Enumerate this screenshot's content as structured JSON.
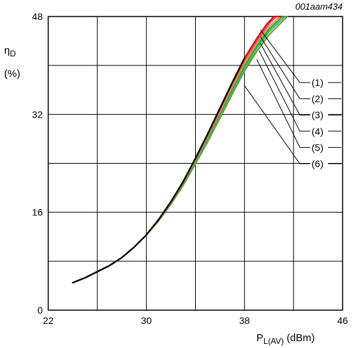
{
  "chart_data": {
    "type": "line",
    "figure_id": "001aam434",
    "xlabel_main": "P",
    "xlabel_sub": "L(AV)",
    "xlabel_unit": "(dBm)",
    "ylabel_line1_main": "η",
    "ylabel_line1_sub": "D",
    "ylabel_line2": "(%)",
    "xlim": [
      22,
      46
    ],
    "ylim": [
      0,
      48
    ],
    "xticks": [
      22,
      30,
      38,
      46
    ],
    "yticks": [
      0,
      16,
      32,
      48
    ],
    "x_gridlines": [
      22,
      26,
      30,
      34,
      38,
      42,
      46
    ],
    "y_gridlines": [
      0,
      8,
      16,
      24,
      32,
      40,
      48
    ],
    "grid": true,
    "series": [
      {
        "name": "(1)",
        "color": "#d01010",
        "x": [
          24.0,
          25.0,
          26.0,
          27.0,
          28.0,
          29.0,
          30.0,
          31.0,
          32.0,
          33.0,
          34.0,
          35.0,
          36.0,
          37.0,
          38.0,
          39.0,
          39.8,
          40.4,
          41.0
        ],
        "y": [
          4.5,
          5.3,
          6.3,
          7.3,
          8.6,
          10.3,
          12.3,
          14.8,
          17.7,
          21.0,
          24.8,
          28.8,
          33.0,
          37.2,
          41.2,
          44.4,
          46.7,
          48.0,
          48.0
        ]
      },
      {
        "name": "(2)",
        "color": "#e040a0",
        "x": [
          24.0,
          25.0,
          26.0,
          27.0,
          28.0,
          29.0,
          30.0,
          31.0,
          32.0,
          33.0,
          34.0,
          35.0,
          36.0,
          37.0,
          38.0,
          39.0,
          40.0,
          40.6
        ],
        "y": [
          4.5,
          5.3,
          6.3,
          7.3,
          8.6,
          10.3,
          12.3,
          14.8,
          17.7,
          21.0,
          24.7,
          28.6,
          32.7,
          36.9,
          40.8,
          44.0,
          46.8,
          48.0
        ]
      },
      {
        "name": "(3)",
        "color": "#f2a000",
        "x": [
          24.0,
          25.0,
          26.0,
          27.0,
          28.0,
          29.0,
          30.0,
          31.0,
          32.0,
          33.0,
          34.0,
          35.0,
          36.0,
          37.0,
          38.0,
          39.0,
          40.0,
          40.9
        ],
        "y": [
          4.5,
          5.3,
          6.3,
          7.3,
          8.6,
          10.3,
          12.3,
          14.8,
          17.6,
          20.9,
          24.5,
          28.4,
          32.4,
          36.5,
          40.3,
          43.6,
          46.3,
          48.0
        ]
      },
      {
        "name": "(4)",
        "color": "#20b020",
        "x": [
          24.0,
          25.0,
          26.0,
          27.0,
          28.0,
          29.0,
          30.0,
          31.0,
          32.0,
          33.0,
          34.0,
          35.0,
          36.0,
          37.0,
          38.0,
          39.0,
          40.0,
          41.1
        ],
        "y": [
          4.5,
          5.3,
          6.3,
          7.3,
          8.6,
          10.3,
          12.3,
          14.7,
          17.5,
          20.7,
          24.3,
          28.1,
          32.1,
          36.1,
          39.9,
          43.2,
          45.9,
          48.0
        ]
      },
      {
        "name": "(5)",
        "color": "#30b0d0",
        "x": [
          24.0,
          25.0,
          26.0,
          27.0,
          28.0,
          29.0,
          30.0,
          31.0,
          32.0,
          33.0,
          34.0,
          35.0,
          36.0,
          37.0,
          38.0,
          39.0,
          40.0,
          41.3
        ],
        "y": [
          4.5,
          5.3,
          6.3,
          7.3,
          8.6,
          10.3,
          12.3,
          14.7,
          17.4,
          20.6,
          24.1,
          27.8,
          31.8,
          35.7,
          39.5,
          42.8,
          45.5,
          48.0
        ]
      },
      {
        "name": "(6)",
        "color": "#8a9a10",
        "x": [
          24.0,
          25.0,
          26.0,
          27.0,
          28.0,
          29.0,
          30.0,
          31.0,
          32.0,
          33.0,
          34.0,
          35.0,
          36.0,
          37.0,
          38.0,
          39.0,
          40.0,
          41.5
        ],
        "y": [
          4.5,
          5.3,
          6.3,
          7.3,
          8.6,
          10.3,
          12.3,
          14.6,
          17.3,
          20.4,
          23.9,
          27.5,
          31.4,
          35.3,
          39.1,
          42.3,
          45.0,
          48.0
        ]
      }
    ],
    "callouts": [
      {
        "label": "(1)",
        "from": [
          39.3,
          45.8
        ]
      },
      {
        "label": "(2)",
        "from": [
          39.3,
          44.7
        ]
      },
      {
        "label": "(3)",
        "from": [
          39.3,
          43.6
        ]
      },
      {
        "label": "(4)",
        "from": [
          39.2,
          42.4
        ]
      },
      {
        "label": "(5)",
        "from": [
          39.0,
          41.0
        ]
      },
      {
        "label": "(6)",
        "from": [
          38.0,
          36.7
        ]
      }
    ]
  }
}
